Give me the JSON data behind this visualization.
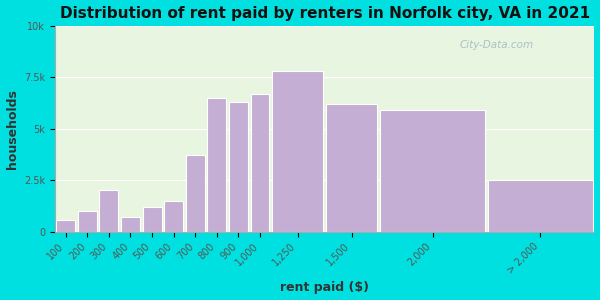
{
  "title": "Distribution of rent paid by renters in Norfolk city, VA in 2021",
  "xlabel": "rent paid ($)",
  "ylabel": "households",
  "background_outer": "#00e0e0",
  "background_inner": "#e8f5e0",
  "bar_color": "#c4aed4",
  "bar_edge_color": "#ffffff",
  "bin_edges": [
    0,
    100,
    200,
    300,
    400,
    500,
    600,
    700,
    800,
    900,
    1000,
    1250,
    1500,
    2000,
    2500
  ],
  "bin_labels": [
    "100",
    "200",
    "300",
    "400",
    "500",
    "600",
    "700",
    "800",
    "900",
    "1,000",
    "1,250",
    "1,500",
    "2,000",
    "> 2,000"
  ],
  "values": [
    550,
    1000,
    2000,
    700,
    1200,
    1500,
    3700,
    6500,
    6300,
    6700,
    7800,
    6200,
    5900,
    2500
  ],
  "ylim": [
    0,
    10000
  ],
  "yticks": [
    0,
    2500,
    5000,
    7500,
    10000
  ],
  "ytick_labels": [
    "0",
    "2.5k",
    "5k",
    "7.5k",
    "10k"
  ],
  "title_fontsize": 11,
  "axis_label_fontsize": 9,
  "tick_fontsize": 7,
  "watermark": "City-Data.com"
}
